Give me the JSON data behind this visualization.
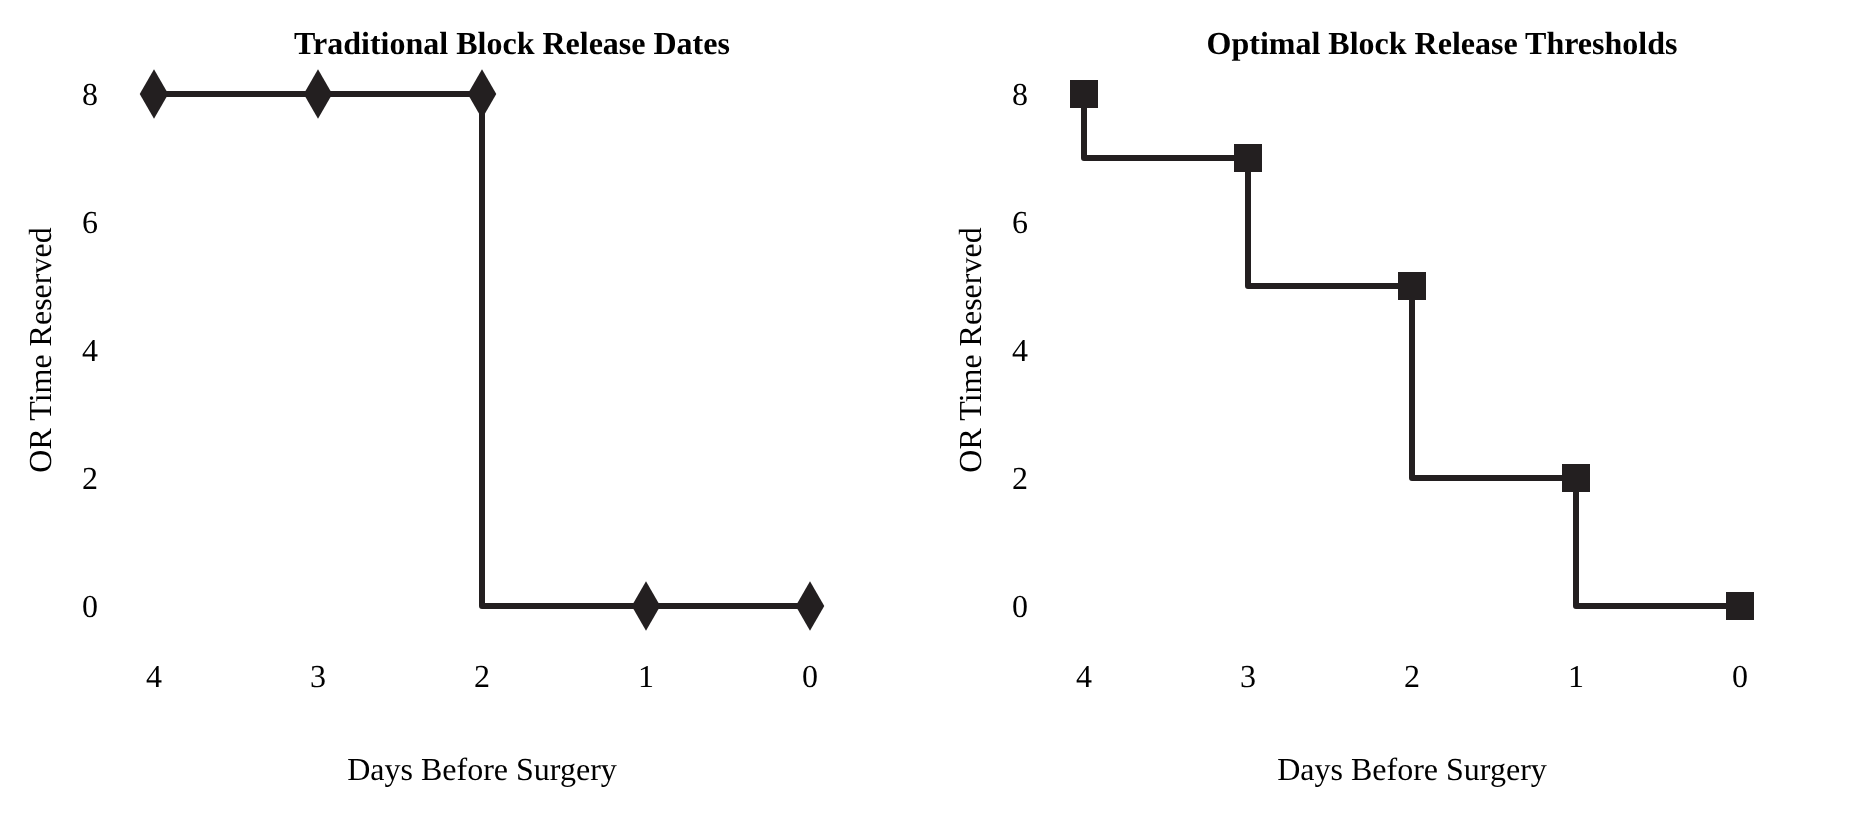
{
  "chart_data": [
    {
      "type": "step",
      "title": "Traditional Block Release Dates",
      "xlabel": "Days Before Surgery",
      "ylabel": "OR Time Reserved",
      "x": [
        4,
        3,
        2,
        1,
        0
      ],
      "values": [
        8,
        8,
        8,
        0,
        0
      ],
      "color": "#231f20",
      "marker": "diamond",
      "xlim": [
        4,
        0
      ],
      "ylim": [
        0,
        8
      ],
      "xticks": [
        4,
        3,
        2,
        1,
        0
      ],
      "yticks": [
        0,
        2,
        4,
        6,
        8
      ],
      "grid": false
    },
    {
      "type": "step",
      "title": "Optimal Block Release Thresholds",
      "xlabel": "Days Before Surgery",
      "ylabel": "OR Time Reserved",
      "x": [
        4,
        3,
        2,
        1,
        0
      ],
      "values": [
        8,
        7,
        5,
        2,
        0
      ],
      "color": "#231f20",
      "marker": "square",
      "xlim": [
        4,
        0
      ],
      "ylim": [
        0,
        8
      ],
      "xticks": [
        4,
        3,
        2,
        1,
        0
      ],
      "yticks": [
        0,
        2,
        4,
        6,
        8
      ],
      "grid": false
    }
  ]
}
